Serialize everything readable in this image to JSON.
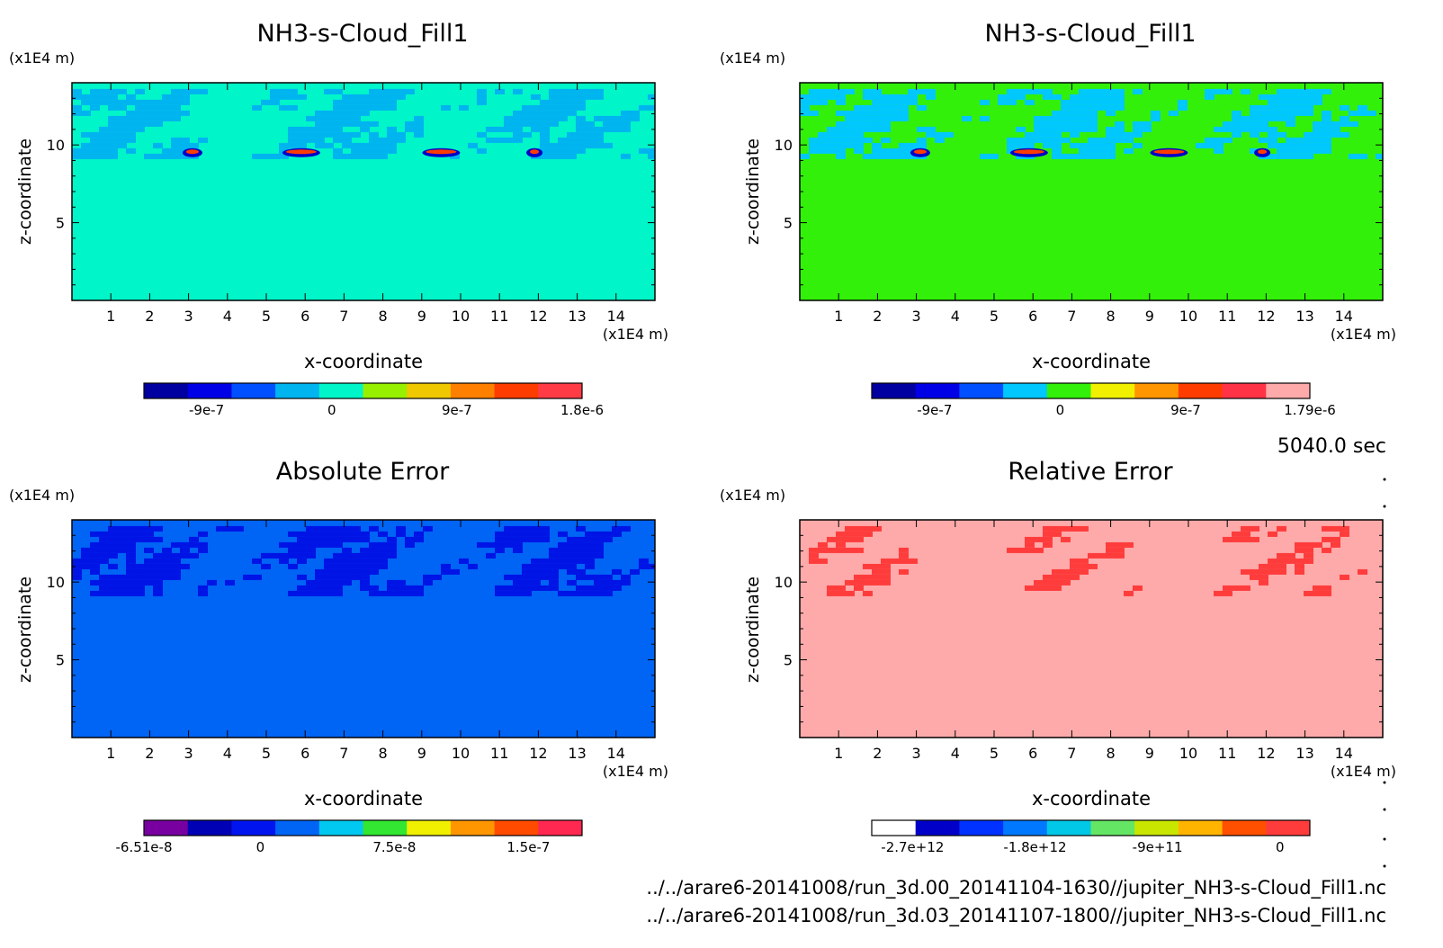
{
  "time_label": "5040.0 sec",
  "files": [
    "../../arare6-20141008/run_3d.00_20141104-1630//jupiter_NH3-s-Cloud_Fill1.nc",
    "../../arare6-20141008/run_3d.03_20141107-1800//jupiter_NH3-s-Cloud_Fill1.nc"
  ],
  "chart_data": [
    {
      "type": "heatmap",
      "title": "NH3-s-Cloud_Fill1",
      "xlabel": "x-coordinate",
      "ylabel": "z-coordinate",
      "x_unit": "(x1E4 m)",
      "z_unit": "(x1E4 m)",
      "xlim": [
        0,
        15
      ],
      "ylim": [
        0,
        14
      ],
      "x_ticks": [
        "1",
        "2",
        "3",
        "4",
        "5",
        "6",
        "7",
        "8",
        "9",
        "10",
        "11",
        "12",
        "13",
        "14"
      ],
      "y_ticks": [
        "5",
        "10"
      ],
      "background_color": "#00f5c8",
      "cloud_color": "#00b4f0",
      "colorbar": {
        "colors": [
          "#0000a0",
          "#0000e6",
          "#0050ff",
          "#00b4f0",
          "#00f5c8",
          "#96f000",
          "#f0c800",
          "#ff8000",
          "#ff3c00",
          "#ff3c46"
        ],
        "tick_labels": [
          "-9e-7",
          "0",
          "9e-7",
          "1.8e-6"
        ],
        "tick_values": [
          -9e-07,
          0,
          9e-07,
          1.8e-06
        ],
        "range": [
          -1.35e-06,
          1.8e-06
        ]
      }
    },
    {
      "type": "heatmap",
      "title": "NH3-s-Cloud_Fill1",
      "xlabel": "x-coordinate",
      "ylabel": "z-coordinate",
      "x_unit": "(x1E4 m)",
      "z_unit": "(x1E4 m)",
      "xlim": [
        0,
        15
      ],
      "ylim": [
        0,
        14
      ],
      "x_ticks": [
        "1",
        "2",
        "3",
        "4",
        "5",
        "6",
        "7",
        "8",
        "9",
        "10",
        "11",
        "12",
        "13",
        "14"
      ],
      "y_ticks": [
        "5",
        "10"
      ],
      "background_color": "#32f00a",
      "cloud_color": "#00c8ff",
      "colorbar": {
        "colors": [
          "#0000a0",
          "#0000e6",
          "#0050ff",
          "#00c8ff",
          "#32f00a",
          "#f0f000",
          "#ff9600",
          "#ff3c00",
          "#ff3246",
          "#ffaaaa"
        ],
        "tick_labels": [
          "-9e-7",
          "0",
          "9e-7",
          "1.79e-6"
        ],
        "tick_values": [
          -9e-07,
          0,
          9e-07,
          1.79e-06
        ],
        "range": [
          -1.35e-06,
          1.79e-06
        ]
      }
    },
    {
      "type": "heatmap",
      "title": "Absolute Error",
      "xlabel": "x-coordinate",
      "ylabel": "z-coordinate",
      "x_unit": "(x1E4 m)",
      "z_unit": "(x1E4 m)",
      "xlim": [
        0,
        15
      ],
      "ylim": [
        0,
        14
      ],
      "x_ticks": [
        "1",
        "2",
        "3",
        "4",
        "5",
        "6",
        "7",
        "8",
        "9",
        "10",
        "11",
        "12",
        "13",
        "14"
      ],
      "y_ticks": [
        "5",
        "10"
      ],
      "background_color": "#0064f5",
      "cloud_color": "#0014e6",
      "colorbar": {
        "colors": [
          "#7800a0",
          "#0000b4",
          "#0014f0",
          "#0064f5",
          "#00c8f0",
          "#32e632",
          "#f0f000",
          "#ff9600",
          "#ff4b00",
          "#ff2850"
        ],
        "tick_labels": [
          "-6.51e-8",
          "0",
          "7.5e-8",
          "1.5e-7"
        ],
        "tick_values": [
          -6.51e-08,
          0,
          7.5e-08,
          1.5e-07
        ],
        "range": [
          -6.51e-08,
          1.8e-07
        ]
      }
    },
    {
      "type": "heatmap",
      "title": "Relative Error",
      "xlabel": "x-coordinate",
      "ylabel": "z-coordinate",
      "x_unit": "(x1E4 m)",
      "z_unit": "(x1E4 m)",
      "xlim": [
        0,
        15
      ],
      "ylim": [
        0,
        14
      ],
      "x_ticks": [
        "1",
        "2",
        "3",
        "4",
        "5",
        "6",
        "7",
        "8",
        "9",
        "10",
        "11",
        "12",
        "13",
        "14"
      ],
      "y_ticks": [
        "5",
        "10"
      ],
      "background_color": "#ffaaaa",
      "cloud_color": "#ff3c3c",
      "colorbar": {
        "colors": [
          "#ffffff",
          "#0000c8",
          "#0032ff",
          "#0078ff",
          "#00c8e6",
          "#64e664",
          "#c8e600",
          "#ffb400",
          "#ff5000",
          "#ff3c3c"
        ],
        "tick_labels": [
          "-2.7e+12",
          "-1.8e+12",
          "-9e+11",
          "0"
        ],
        "tick_values": [
          -2700000000000.0,
          -1800000000000.0,
          -900000000000.0,
          0
        ],
        "range": [
          -3000000000000.0,
          220000000000.0
        ]
      }
    }
  ]
}
